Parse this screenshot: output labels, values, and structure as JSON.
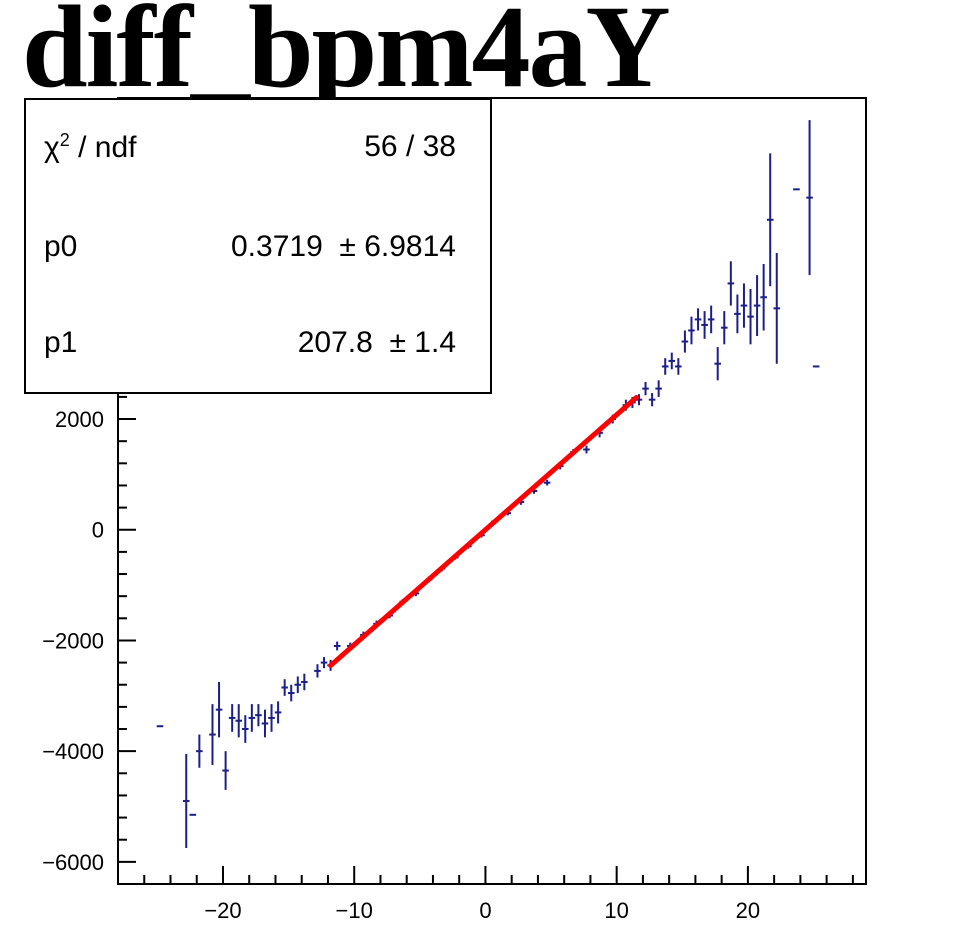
{
  "title": "diff_bpm4aY",
  "stats": {
    "chi2_symbol": "χ",
    "chi2_exp": "2",
    "chi2_suffix": " / ndf",
    "chi2_value": "56 / 38",
    "p0_label": "p0",
    "p0_value": "0.3719  ± 6.9814",
    "p1_label": "p1",
    "p1_value": "207.8  ± 1.4"
  },
  "colors": {
    "data": "#1b1f8a",
    "fit": "#ff0000",
    "axis": "#000000"
  },
  "chart_data": {
    "type": "scatter",
    "title": "diff_bpm4aY",
    "xlim": [
      -28,
      29
    ],
    "ylim": [
      -6400,
      7800
    ],
    "xticks": [
      -20,
      -10,
      0,
      10,
      20
    ],
    "xtick_labels": [
      "−20",
      "−10",
      "0",
      "10",
      "20"
    ],
    "yticks": [
      -6000,
      -4000,
      -2000,
      0,
      2000
    ],
    "ytick_labels": [
      "−6000",
      "−4000",
      "−2000",
      "0",
      "2000"
    ],
    "fit": {
      "p0": 0.3719,
      "p1": 207.8,
      "x_range": [
        -11.8,
        11.5
      ]
    },
    "points": [
      {
        "x": -24.8,
        "y": -3550,
        "ey": 0
      },
      {
        "x": -22.8,
        "y": -4900,
        "ey": 850
      },
      {
        "x": -22.3,
        "y": -5150,
        "ey": 0
      },
      {
        "x": -21.8,
        "y": -4000,
        "ey": 300
      },
      {
        "x": -20.8,
        "y": -3700,
        "ey": 550
      },
      {
        "x": -20.3,
        "y": -3250,
        "ey": 500
      },
      {
        "x": -19.8,
        "y": -4350,
        "ey": 350
      },
      {
        "x": -19.3,
        "y": -3400,
        "ey": 250
      },
      {
        "x": -18.8,
        "y": -3450,
        "ey": 300
      },
      {
        "x": -18.3,
        "y": -3600,
        "ey": 250
      },
      {
        "x": -17.8,
        "y": -3400,
        "ey": 250
      },
      {
        "x": -17.3,
        "y": -3350,
        "ey": 200
      },
      {
        "x": -16.8,
        "y": -3500,
        "ey": 250
      },
      {
        "x": -16.3,
        "y": -3400,
        "ey": 250
      },
      {
        "x": -15.8,
        "y": -3300,
        "ey": 200
      },
      {
        "x": -15.3,
        "y": -2850,
        "ey": 150
      },
      {
        "x": -14.8,
        "y": -2950,
        "ey": 150
      },
      {
        "x": -14.3,
        "y": -2800,
        "ey": 150
      },
      {
        "x": -13.8,
        "y": -2750,
        "ey": 150
      },
      {
        "x": -12.8,
        "y": -2550,
        "ey": 120
      },
      {
        "x": -12.3,
        "y": -2400,
        "ey": 100
      },
      {
        "x": -11.8,
        "y": -2450,
        "ey": 100
      },
      {
        "x": -11.3,
        "y": -2100,
        "ey": 80
      },
      {
        "x": -10.3,
        "y": -2100,
        "ey": 60
      },
      {
        "x": -9.3,
        "y": -1900,
        "ey": 60
      },
      {
        "x": -8.3,
        "y": -1700,
        "ey": 60
      },
      {
        "x": -7.3,
        "y": -1550,
        "ey": 50
      },
      {
        "x": -6.3,
        "y": -1300,
        "ey": 50
      },
      {
        "x": -5.3,
        "y": -1150,
        "ey": 50
      },
      {
        "x": -4.3,
        "y": -900,
        "ey": 50
      },
      {
        "x": -3.3,
        "y": -700,
        "ey": 50
      },
      {
        "x": -2.3,
        "y": -500,
        "ey": 40
      },
      {
        "x": -1.3,
        "y": -300,
        "ey": 40
      },
      {
        "x": -0.3,
        "y": -100,
        "ey": 40
      },
      {
        "x": 0.7,
        "y": 150,
        "ey": 40
      },
      {
        "x": 1.7,
        "y": 300,
        "ey": 40
      },
      {
        "x": 2.7,
        "y": 500,
        "ey": 50
      },
      {
        "x": 3.7,
        "y": 700,
        "ey": 50
      },
      {
        "x": 4.7,
        "y": 850,
        "ey": 50
      },
      {
        "x": 5.7,
        "y": 1150,
        "ey": 60
      },
      {
        "x": 6.7,
        "y": 1400,
        "ey": 60
      },
      {
        "x": 7.7,
        "y": 1450,
        "ey": 70
      },
      {
        "x": 8.7,
        "y": 1750,
        "ey": 80
      },
      {
        "x": 9.7,
        "y": 2000,
        "ey": 80
      },
      {
        "x": 10.7,
        "y": 2250,
        "ey": 100
      },
      {
        "x": 11.2,
        "y": 2300,
        "ey": 100
      },
      {
        "x": 11.7,
        "y": 2350,
        "ey": 100
      },
      {
        "x": 12.2,
        "y": 2550,
        "ey": 120
      },
      {
        "x": 12.7,
        "y": 2350,
        "ey": 120
      },
      {
        "x": 13.2,
        "y": 2550,
        "ey": 150
      },
      {
        "x": 13.7,
        "y": 2950,
        "ey": 150
      },
      {
        "x": 14.2,
        "y": 3050,
        "ey": 150
      },
      {
        "x": 14.7,
        "y": 2950,
        "ey": 150
      },
      {
        "x": 15.2,
        "y": 3400,
        "ey": 200
      },
      {
        "x": 15.7,
        "y": 3600,
        "ey": 250
      },
      {
        "x": 16.2,
        "y": 3800,
        "ey": 200
      },
      {
        "x": 16.7,
        "y": 3700,
        "ey": 250
      },
      {
        "x": 17.2,
        "y": 3800,
        "ey": 250
      },
      {
        "x": 17.7,
        "y": 3000,
        "ey": 300
      },
      {
        "x": 18.2,
        "y": 3650,
        "ey": 300
      },
      {
        "x": 18.7,
        "y": 4450,
        "ey": 400
      },
      {
        "x": 19.2,
        "y": 3900,
        "ey": 350
      },
      {
        "x": 19.7,
        "y": 4050,
        "ey": 400
      },
      {
        "x": 20.2,
        "y": 3850,
        "ey": 500
      },
      {
        "x": 20.7,
        "y": 4050,
        "ey": 550
      },
      {
        "x": 21.2,
        "y": 4200,
        "ey": 600
      },
      {
        "x": 21.7,
        "y": 5600,
        "ey": 1200
      },
      {
        "x": 22.2,
        "y": 4000,
        "ey": 1000
      },
      {
        "x": 23.7,
        "y": 6150,
        "ey": 0
      },
      {
        "x": 24.7,
        "y": 6000,
        "ey": 1400
      },
      {
        "x": 25.2,
        "y": 2950,
        "ey": 0
      }
    ]
  }
}
